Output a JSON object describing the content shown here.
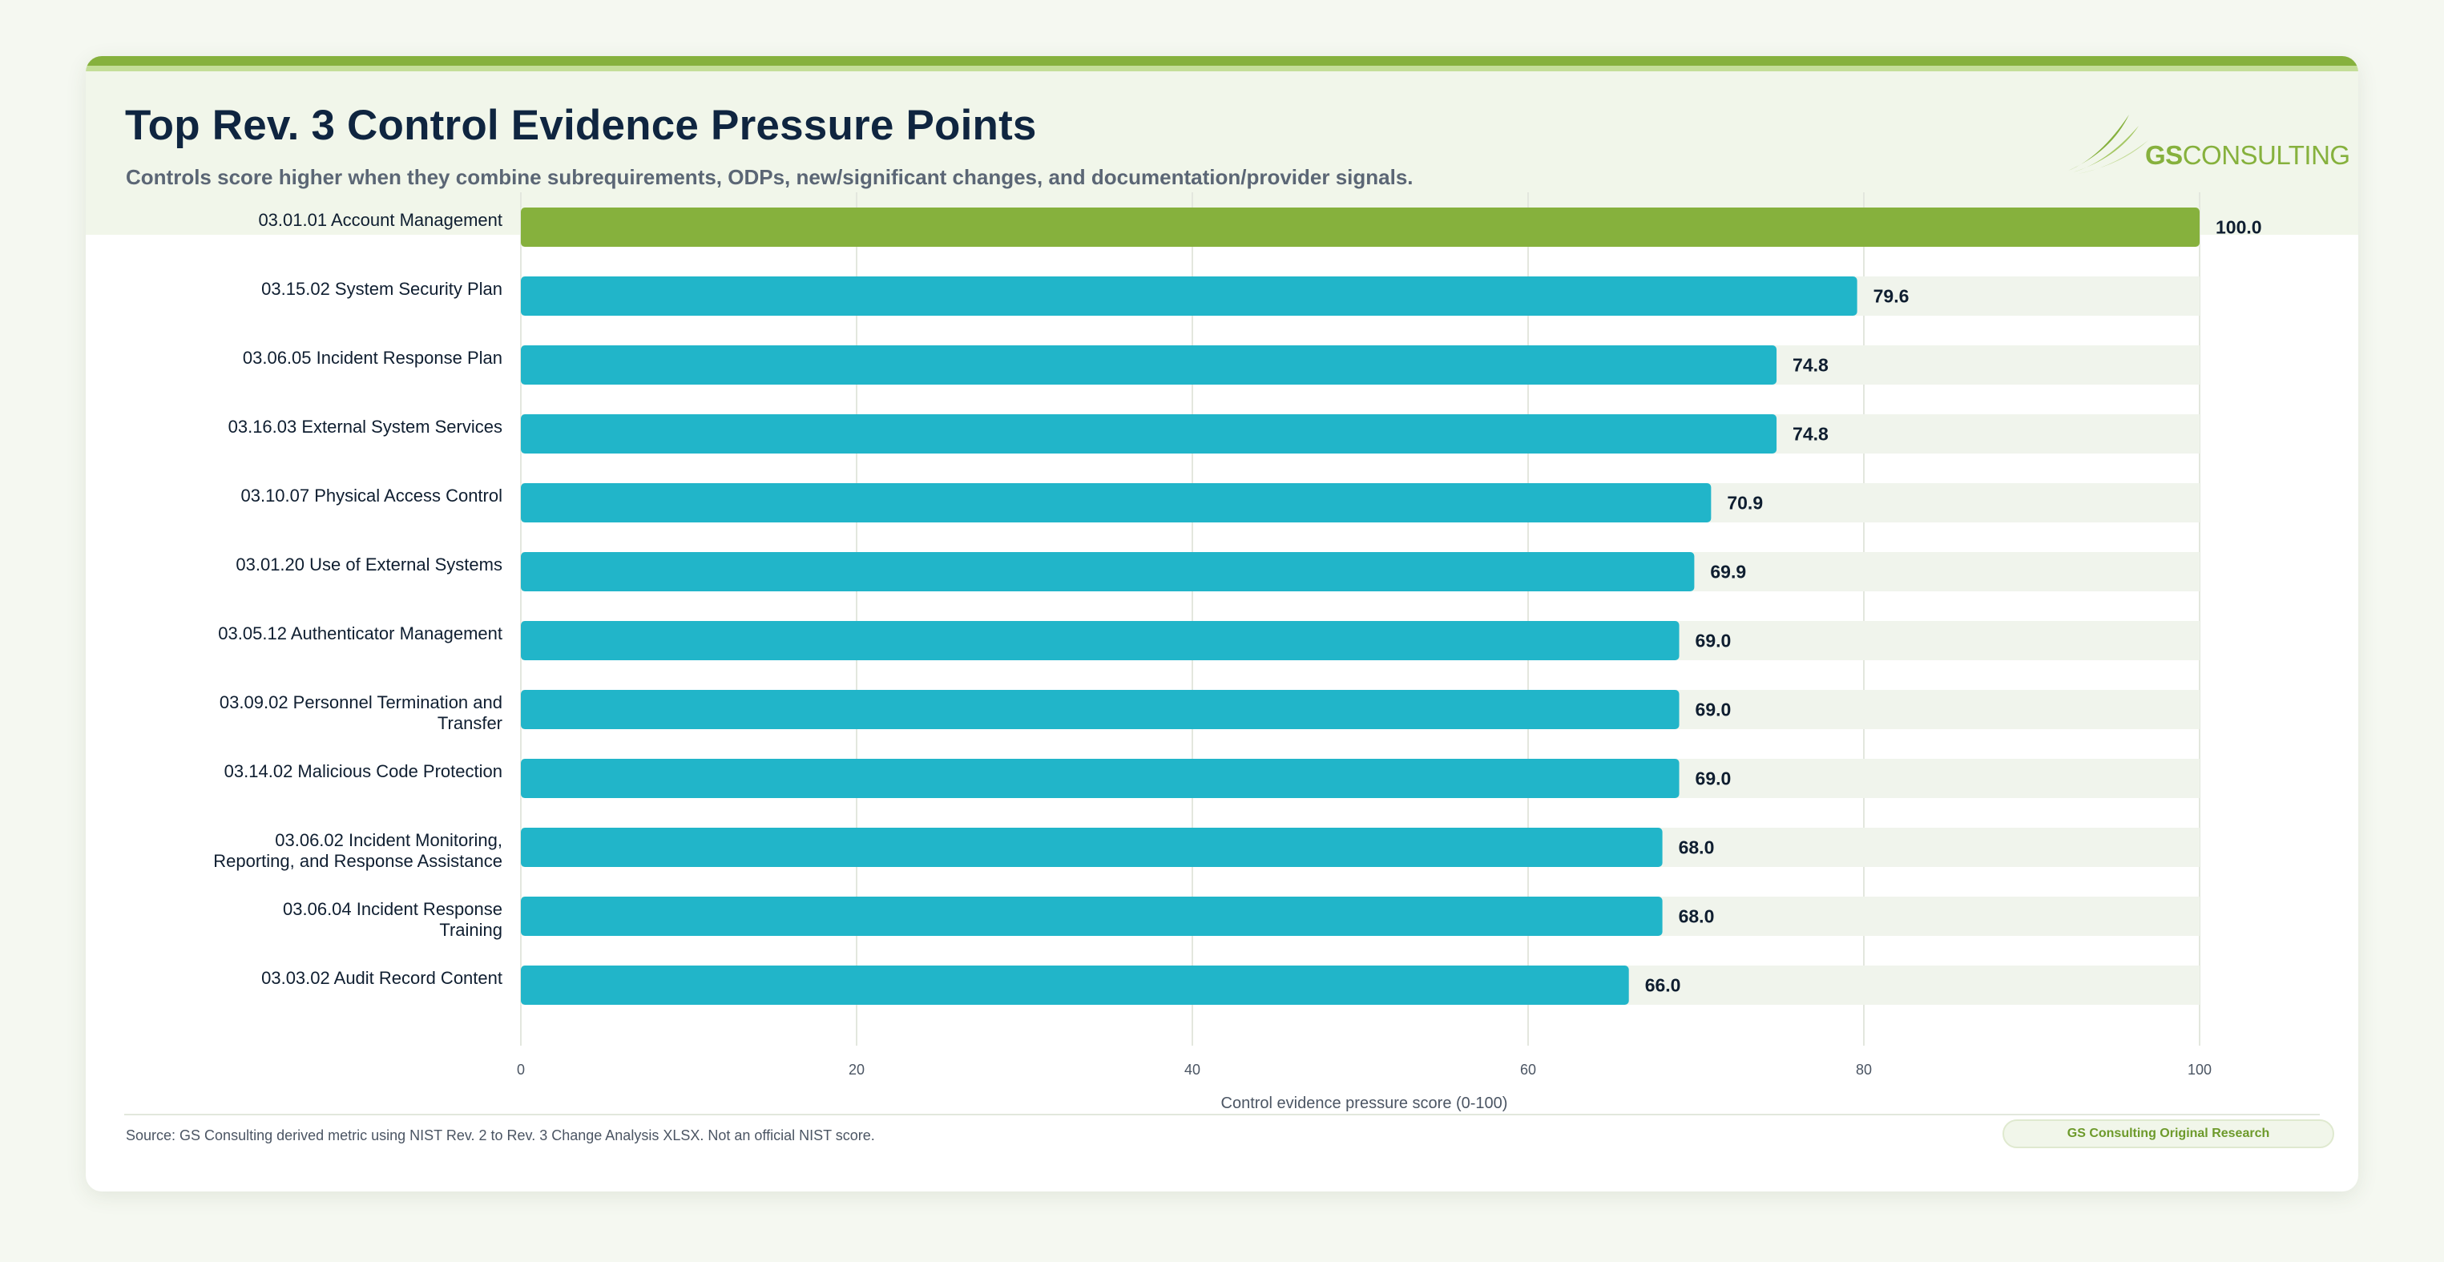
{
  "header": {
    "title": "Top Rev. 3 Control Evidence Pressure Points",
    "subtitle": "Controls score higher when they combine subrequirements, ODPs, new/significant changes, and documentation/provider signals."
  },
  "logo": {
    "text_bold": "GS",
    "text_regular": "CONSULTING",
    "icon": "swoosh-icon"
  },
  "footer": {
    "source": "Source: GS Consulting derived metric using NIST Rev. 2 to Rev. 3 Change Analysis XLSX. Not an official NIST score.",
    "badge": "GS Consulting Original Research"
  },
  "colors": {
    "highlight": "#86b13d",
    "bar": "#21b5c9",
    "track": "#f0f4ec",
    "grid": "#e3e7de",
    "label": "#0f1e30"
  },
  "chart_data": {
    "type": "bar",
    "orientation": "horizontal",
    "xlabel": "Control evidence pressure score (0-100)",
    "xlim": [
      0,
      100
    ],
    "xticks": [
      0,
      20,
      40,
      60,
      80,
      100
    ],
    "grid": true,
    "categories": [
      [
        "03.01.01 Account Management"
      ],
      [
        "03.15.02 System Security Plan"
      ],
      [
        "03.06.05 Incident Response Plan"
      ],
      [
        "03.16.03 External System Services"
      ],
      [
        "03.10.07 Physical Access Control"
      ],
      [
        "03.01.20 Use of External Systems"
      ],
      [
        "03.05.12 Authenticator Management"
      ],
      [
        "03.09.02 Personnel Termination and",
        "Transfer"
      ],
      [
        "03.14.02 Malicious Code Protection"
      ],
      [
        "03.06.02 Incident Monitoring,",
        "Reporting, and Response Assistance"
      ],
      [
        "03.06.04 Incident Response",
        "Training"
      ],
      [
        "03.03.02 Audit Record Content"
      ]
    ],
    "values": [
      100.0,
      79.6,
      74.8,
      74.8,
      70.9,
      69.9,
      69.0,
      69.0,
      69.0,
      68.0,
      68.0,
      66.0
    ],
    "value_labels": [
      "100.0",
      "79.6",
      "74.8",
      "74.8",
      "70.9",
      "69.9",
      "69.0",
      "69.0",
      "69.0",
      "68.0",
      "68.0",
      "66.0"
    ],
    "highlight_index": 0
  }
}
